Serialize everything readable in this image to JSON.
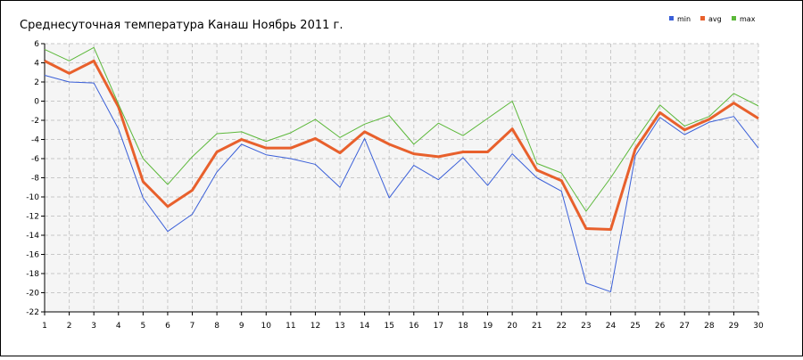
{
  "chart_data": {
    "type": "line",
    "title": "Среднесуточная температура Канаш  Ноябрь 2011 г.",
    "x": [
      1,
      2,
      3,
      4,
      5,
      6,
      7,
      8,
      9,
      10,
      11,
      12,
      13,
      14,
      15,
      16,
      17,
      18,
      19,
      20,
      21,
      22,
      23,
      24,
      25,
      26,
      27,
      28,
      29,
      30
    ],
    "xlim": [
      1,
      30
    ],
    "xticks": [
      1,
      2,
      3,
      4,
      5,
      6,
      7,
      8,
      9,
      10,
      11,
      12,
      13,
      14,
      15,
      16,
      17,
      18,
      19,
      20,
      21,
      22,
      23,
      24,
      25,
      26,
      27,
      28,
      29,
      30
    ],
    "ylim": [
      -22,
      6
    ],
    "yticks": [
      6,
      4,
      2,
      0,
      -2,
      -4,
      -6,
      -8,
      -10,
      -12,
      -14,
      -16,
      -18,
      -20,
      -22
    ],
    "grid": true,
    "legend": "top-right",
    "series": [
      {
        "name": "min",
        "color": "#3a5fd8",
        "values": [
          2.7,
          2.0,
          1.9,
          -2.9,
          -10.1,
          -13.6,
          -11.8,
          -7.4,
          -4.5,
          -5.6,
          -6.0,
          -6.6,
          -9.0,
          -3.9,
          -10.1,
          -6.7,
          -8.2,
          -5.9,
          -8.8,
          -5.5,
          -8.0,
          -9.4,
          -19.0,
          -19.9,
          -5.7,
          -1.7,
          -3.5,
          -2.2,
          -1.6,
          -4.9
        ]
      },
      {
        "name": "avg",
        "color": "#e8602c",
        "values": [
          4.2,
          2.9,
          4.2,
          -0.6,
          -8.4,
          -11.0,
          -9.3,
          -5.3,
          -4.0,
          -4.9,
          -4.9,
          -3.9,
          -5.4,
          -3.2,
          -4.5,
          -5.5,
          -5.8,
          -5.3,
          -5.3,
          -2.9,
          -7.2,
          -8.3,
          -13.3,
          -13.4,
          -5.0,
          -1.2,
          -3.0,
          -1.9,
          -0.2,
          -1.8
        ]
      },
      {
        "name": "max",
        "color": "#5cb83a",
        "values": [
          5.4,
          4.2,
          5.6,
          -0.3,
          -6.0,
          -8.7,
          -5.8,
          -3.4,
          -3.2,
          -4.2,
          -3.3,
          -1.9,
          -3.8,
          -2.4,
          -1.5,
          -4.5,
          -2.3,
          -3.6,
          -1.8,
          0.0,
          -6.5,
          -7.5,
          -11.5,
          -8.0,
          -4.1,
          -0.4,
          -2.6,
          -1.6,
          0.8,
          -0.5
        ]
      }
    ]
  }
}
